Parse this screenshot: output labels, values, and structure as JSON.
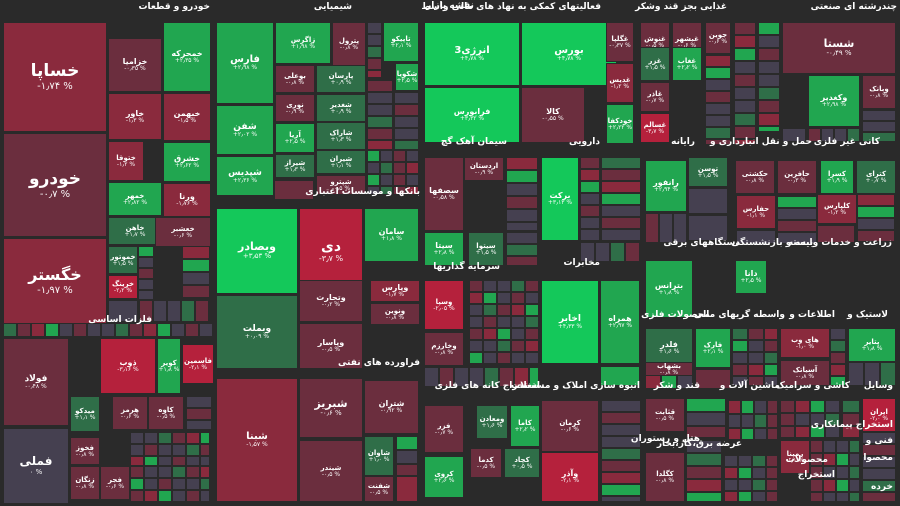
{
  "title": "نقشه بازار",
  "colors": {
    "bg": "#2a2a2a",
    "neutral": "#454050",
    "pos": [
      "#2f6e48",
      "#21a650",
      "#14c85a"
    ],
    "neg": [
      "#6b2e3e",
      "#8a2a3d",
      "#b5213c"
    ]
  },
  "chart_data": {
    "type": "treemap",
    "unit": "%",
    "sectors": [
      {
        "name": "خودرو و قطعات",
        "id": "auto"
      },
      {
        "name": "شیمیایی",
        "id": "chem"
      },
      {
        "name": "فعالیتهای کمکی به نهاد های مالی واسط",
        "id": "fin"
      },
      {
        "name": "غذایی بجز قند وشکر",
        "id": "food"
      },
      {
        "name": "چندرشته ای صنعتی",
        "id": "multi"
      },
      {
        "name": "بانکها و موسسات اعتباری",
        "id": "banks"
      },
      {
        "name": "سیمان آهک گچ",
        "id": "cement"
      },
      {
        "name": "دارویی",
        "id": "pharma"
      },
      {
        "name": "رایانه",
        "id": "computer"
      },
      {
        "name": "حمل و نقل انبارداری و",
        "id": "transport"
      },
      {
        "name": "کانی غیر فلزی",
        "id": "mineral"
      },
      {
        "name": "فلزات اساسی",
        "id": "metals"
      },
      {
        "name": "سرمایه گذاریها",
        "id": "invest"
      },
      {
        "name": "مخابرات",
        "id": "telecom"
      },
      {
        "name": "دستگاههای برقی",
        "id": "electric"
      },
      {
        "name": "بیمه و بازنشستگی",
        "id": "insurance"
      },
      {
        "name": "زراعت و خدمات وابسته",
        "id": "agri"
      },
      {
        "name": "فراورده های نفتی",
        "id": "oil"
      },
      {
        "name": "محصولات فلزی",
        "id": "metalprod"
      },
      {
        "name": "واسطه گریهای مالی",
        "id": "intermed"
      },
      {
        "name": "اطلاعات و",
        "id": "it"
      },
      {
        "name": "لاستیک و",
        "id": "rubber"
      },
      {
        "name": "استخراج کانه های فلزی",
        "id": "mining"
      },
      {
        "name": "انبوه سازی املاک و مستغلات",
        "id": "realestate"
      },
      {
        "name": "قند و شکر",
        "id": "sugar"
      },
      {
        "name": "ماشین آلات و",
        "id": "machinery"
      },
      {
        "name": "کاشی و سرامیک",
        "id": "tile"
      },
      {
        "name": "وسایل",
        "id": "vehicles"
      },
      {
        "name": "هتل و رستوران",
        "id": "hotel"
      },
      {
        "name": "عرضه برق،گاز،بخار",
        "id": "utility"
      },
      {
        "name": "فنی و",
        "id": "eng"
      },
      {
        "name": "محصولات",
        "id": "products"
      },
      {
        "name": "استخراج",
        "id": "extract"
      },
      {
        "name": "استخراج پیمانکاری",
        "id": "contract"
      },
      {
        "name": "محصوا",
        "id": "mahsoa"
      },
      {
        "name": "خرده",
        "id": "retail"
      }
    ],
    "stocks": [
      {
        "symbol": "خساپا",
        "change": "-۱٫۷۴",
        "sector": "auto"
      },
      {
        "symbol": "خودرو",
        "change": "-۰٫۷",
        "sector": "auto"
      },
      {
        "symbol": "خگستر",
        "change": "-۱٫۹۷",
        "sector": "auto"
      },
      {
        "symbol": "خزامیا",
        "change": "-۰٫۳۵",
        "sector": "auto"
      },
      {
        "symbol": "خمحرکه",
        "change": "+۲٫۳۵",
        "sector": "auto"
      },
      {
        "symbol": "خاور",
        "change": "-۱٫۳",
        "sector": "auto"
      },
      {
        "symbol": "خبهمن",
        "change": "-۱٫۵",
        "sector": "auto"
      },
      {
        "symbol": "ختوقا",
        "change": "-۱٫۲",
        "sector": "auto"
      },
      {
        "symbol": "خشرق",
        "change": "+۲٫۶۲",
        "sector": "auto"
      },
      {
        "symbol": "خمهر",
        "change": "+۲٫۸۲",
        "sector": "auto"
      },
      {
        "symbol": "ورنا",
        "change": "-۱٫۷۶",
        "sector": "auto"
      },
      {
        "symbol": "خاهن",
        "change": "+۱٫۷",
        "sector": "auto"
      },
      {
        "symbol": "خعشبر",
        "change": "-۰٫۶",
        "sector": "auto"
      },
      {
        "symbol": "خموتور",
        "change": "+۱٫۵",
        "sector": "auto"
      },
      {
        "symbol": "خرینگ",
        "change": "-۲٫۲",
        "sector": "auto"
      },
      {
        "symbol": "فاسمین",
        "change": "-۱٫۳",
        "sector": "auto"
      },
      {
        "symbol": "فارس",
        "change": "+۲٫۹۸",
        "sector": "chem"
      },
      {
        "symbol": "زاگرس",
        "change": "+۱٫۹۸",
        "sector": "chem"
      },
      {
        "symbol": "پترول",
        "change": "-۰٫۸",
        "sector": "chem"
      },
      {
        "symbol": "تاپیکو",
        "change": "+۲٫۱",
        "sector": "chem"
      },
      {
        "symbol": "پارسان",
        "change": "+۰٫۹",
        "sector": "chem"
      },
      {
        "symbol": "شکویا",
        "change": "+۲٫۵",
        "sector": "chem"
      },
      {
        "symbol": "بوعلی",
        "change": "-۰٫۸",
        "sector": "chem"
      },
      {
        "symbol": "شغدیر",
        "change": "+۰٫۹",
        "sector": "chem"
      },
      {
        "symbol": "نوری",
        "change": "-۰٫۹",
        "sector": "chem"
      },
      {
        "symbol": "شاراک",
        "change": "+۱٫۳",
        "sector": "chem"
      },
      {
        "symbol": "شفن",
        "change": "+۲٫۰۲",
        "sector": "chem"
      },
      {
        "symbol": "شپدیس",
        "change": "+۲٫۳۶",
        "sector": "chem"
      },
      {
        "symbol": "آریا",
        "change": "+۲٫۵",
        "sector": "chem"
      },
      {
        "symbol": "شیران",
        "change": "+۱٫۱",
        "sector": "chem"
      },
      {
        "symbol": "شیراز",
        "change": "+۱٫۳",
        "sector": "chem"
      },
      {
        "symbol": "شپترو",
        "change": "-۰٫۵",
        "sector": "chem"
      },
      {
        "symbol": "انرژی3",
        "change": "+۴٫۷۸",
        "sector": "fin"
      },
      {
        "symbol": "بورس",
        "change": "+۴٫۷۸",
        "sector": "fin"
      },
      {
        "symbol": "فرابورس",
        "change": "+۳٫۳۲",
        "sector": "fin"
      },
      {
        "symbol": "کالا",
        "change": "-۰٫۵۵",
        "sector": "fin"
      },
      {
        "symbol": "غگلپا",
        "change": "-۰٫۳۷",
        "sector": "food"
      },
      {
        "symbol": "غنوش",
        "change": "-۰٫۵",
        "sector": "food"
      },
      {
        "symbol": "غبشهر",
        "change": "-۰٫۶",
        "sector": "food"
      },
      {
        "symbol": "غدیس",
        "change": "-۱٫۲",
        "sector": "food"
      },
      {
        "symbol": "غغاب",
        "change": "+۲٫۲",
        "sector": "food"
      },
      {
        "symbol": "غزر",
        "change": "+۱٫۵",
        "sector": "food"
      },
      {
        "symbol": "غاذر",
        "change": "-۰٫۷",
        "sector": "food"
      },
      {
        "symbol": "خودکفا",
        "change": "+۲٫۲۲",
        "sector": "food"
      },
      {
        "symbol": "غسالم",
        "change": "-۳٫۷",
        "sector": "food"
      },
      {
        "symbol": "جوین",
        "change": "-۰٫۶",
        "sector": "food"
      },
      {
        "symbol": "شستا",
        "change": "-۰٫۴۹",
        "sector": "multi"
      },
      {
        "symbol": "وکغدیر",
        "change": "+۲٫۹۸",
        "sector": "multi"
      },
      {
        "symbol": "وبانک",
        "change": "-۰٫۸",
        "sector": "multi"
      },
      {
        "symbol": "وبصادر",
        "change": "+۳٫۵۳",
        "sector": "banks"
      },
      {
        "symbol": "دی",
        "change": "-۳٫۷",
        "sector": "banks"
      },
      {
        "symbol": "سامان",
        "change": "+۱٫۸",
        "sector": "banks"
      },
      {
        "symbol": "وبملت",
        "change": "+۰٫۰۹",
        "sector": "banks"
      },
      {
        "symbol": "وتجارت",
        "change": "-۰٫۲",
        "sector": "banks"
      },
      {
        "symbol": "وپارس",
        "change": "-۱٫۷",
        "sector": "banks"
      },
      {
        "symbol": "ونوین",
        "change": "-۰٫۸",
        "sector": "banks"
      },
      {
        "symbol": "وپاسار",
        "change": "-۰٫۵",
        "sector": "banks"
      },
      {
        "symbol": "اردستان",
        "change": "-۰٫۹",
        "sector": "cement"
      },
      {
        "symbol": "سصفها",
        "change": "-۰٫۵۸",
        "sector": "cement"
      },
      {
        "symbol": "سیتا",
        "change": "+۲٫۸",
        "sector": "cement"
      },
      {
        "symbol": "سیتوا",
        "change": "+۱٫۵",
        "sector": "cement"
      },
      {
        "symbol": "برکت",
        "change": "+۳٫۱۳",
        "sector": "pharma"
      },
      {
        "symbol": "رانفور",
        "change": "+۲٫۹۴",
        "sector": "computer"
      },
      {
        "symbol": "توسن",
        "change": "+۱٫۵",
        "sector": "computer"
      },
      {
        "symbol": "حکشتی",
        "change": "-۰٫۸",
        "sector": "transport"
      },
      {
        "symbol": "حافرین",
        "change": "-۰٫۳",
        "sector": "transport"
      },
      {
        "symbol": "حفارس",
        "change": "-۱٫۱",
        "sector": "transport"
      },
      {
        "symbol": "کسرا",
        "change": "+۱٫۹",
        "sector": "mineral"
      },
      {
        "symbol": "کترای",
        "change": "+۰٫۷",
        "sector": "mineral"
      },
      {
        "symbol": "کلپارس",
        "change": "-۱٫۲",
        "sector": "mineral"
      },
      {
        "symbol": "فولاد",
        "change": "-۰٫۴۸",
        "sector": "metals"
      },
      {
        "symbol": "فملی",
        "change": "۰",
        "sector": "metals"
      },
      {
        "symbol": "ذوب",
        "change": "-۳٫۱۶",
        "sector": "metals"
      },
      {
        "symbol": "کویر",
        "change": "+۱٫۸",
        "sector": "metals"
      },
      {
        "symbol": "فاسمین",
        "change": "-۲٫۱",
        "sector": "metals"
      },
      {
        "symbol": "کاوه",
        "change": "-۰٫۵",
        "sector": "metals"
      },
      {
        "symbol": "هرمز",
        "change": "-۰٫۶",
        "sector": "metals"
      },
      {
        "symbol": "میدکو",
        "change": "+۱٫۱",
        "sector": "metals"
      },
      {
        "symbol": "فخوز",
        "change": "-۰٫۸",
        "sector": "metals"
      },
      {
        "symbol": "زنگان",
        "change": "-۰٫۸",
        "sector": "metals"
      },
      {
        "symbol": "فجر",
        "change": "-۰٫۶",
        "sector": "metals"
      },
      {
        "symbol": "وسپا",
        "change": "-۲٫۰۵",
        "sector": "invest"
      },
      {
        "symbol": "وخارزم",
        "change": "-۰٫۸",
        "sector": "invest"
      },
      {
        "symbol": "اخابر",
        "change": "+۴٫۳۳",
        "sector": "telecom"
      },
      {
        "symbol": "همراه",
        "change": "+۲٫۹۷",
        "sector": "telecom"
      },
      {
        "symbol": "بترانس",
        "change": "+۱٫۸",
        "sector": "electric"
      },
      {
        "symbol": "دانا",
        "change": "+۲٫۵",
        "sector": "insurance"
      },
      {
        "symbol": "ومعادن",
        "change": "+۱٫۶",
        "sector": "mining"
      },
      {
        "symbol": "فزر",
        "change": "-۰٫۷",
        "sector": "mining"
      },
      {
        "symbol": "کاما",
        "change": "+۲٫۲",
        "sector": "mining"
      },
      {
        "symbol": "کروی",
        "change": "+۲٫۶",
        "sector": "mining"
      },
      {
        "symbol": "کدما",
        "change": "-۰٫۵",
        "sector": "mining"
      },
      {
        "symbol": "کچاد",
        "change": "+۰٫۵",
        "sector": "mining"
      },
      {
        "symbol": "شتران",
        "change": "-۰٫۹۲",
        "sector": "oil"
      },
      {
        "symbol": "شبنا",
        "change": "-۱٫۵۷",
        "sector": "oil"
      },
      {
        "symbol": "شبریز",
        "change": "-۰٫۶",
        "sector": "oil"
      },
      {
        "symbol": "شاوان",
        "change": "+۱٫۰",
        "sector": "oil"
      },
      {
        "symbol": "شفنت",
        "change": "-۰٫۵",
        "sector": "oil"
      },
      {
        "symbol": "شیندر",
        "change": "-۰٫۵",
        "sector": "oil"
      },
      {
        "symbol": "فلدر",
        "change": "+۱٫۶",
        "sector": "metalprod"
      },
      {
        "symbol": "فارک",
        "change": "+۲٫۱",
        "sector": "metalprod"
      },
      {
        "symbol": "های وب",
        "change": "-۱٫۰",
        "sector": "it"
      },
      {
        "symbol": "آسیاتک",
        "change": "-۰٫۸",
        "sector": "it"
      },
      {
        "symbol": "پتایر",
        "change": "+۱٫۸",
        "sector": "rubber"
      },
      {
        "symbol": "کرمان",
        "change": "-۰٫۶",
        "sector": "realestate"
      },
      {
        "symbol": "وآذر",
        "change": "-۲٫۱",
        "sector": "realestate"
      },
      {
        "symbol": "قثابت",
        "change": "-۰٫۵",
        "sector": "sugar"
      },
      {
        "symbol": "کگلدا",
        "change": "-۰٫۸",
        "sector": "tile"
      },
      {
        "symbol": "ایران",
        "change": "-۲٫۰",
        "sector": "vehicles"
      },
      {
        "symbol": "رمپنا",
        "change": "-۱٫۱",
        "sector": "eng"
      },
      {
        "symbol": "بشهاب",
        "change": "-۰٫۸",
        "sector": "electric"
      }
    ]
  }
}
